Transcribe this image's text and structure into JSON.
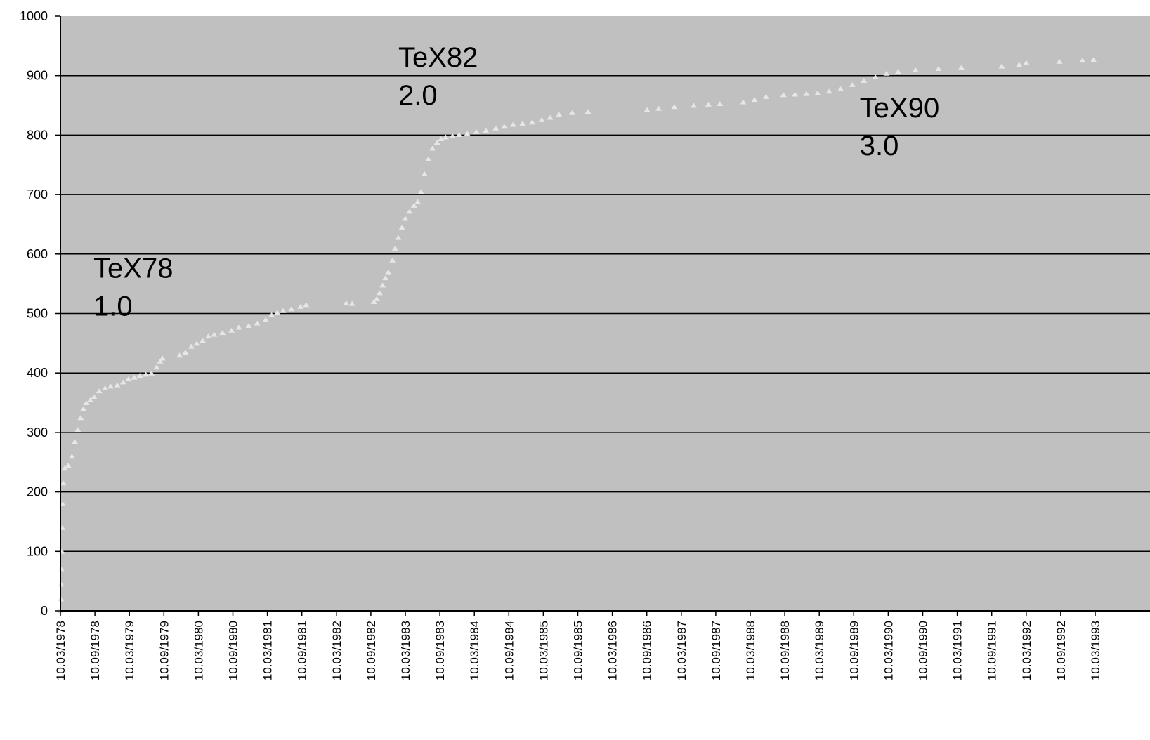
{
  "chart_data": {
    "type": "scatter",
    "title": "",
    "xlabel": "",
    "ylabel": "",
    "x_axis": {
      "type": "date",
      "range": [
        "1978-03-10",
        "1993-03-10"
      ],
      "tick_labels": [
        "10.03/1978",
        "10.09/1978",
        "10.03/1979",
        "10.09/1979",
        "10.03/1980",
        "10.09/1980",
        "10.03/1981",
        "10.09/1981",
        "10.03/1982",
        "10.09/1982",
        "10.03/1983",
        "10.09/1983",
        "10.03/1984",
        "10.09/1984",
        "10.03/1985",
        "10.09/1985",
        "10.03/1986",
        "10.09/1986",
        "10.03/1987",
        "10.09/1987",
        "10.03/1988",
        "10.09/1988",
        "10.03/1989",
        "10.09/1989",
        "10.03/1990",
        "10.09/1990",
        "10.03/1991",
        "10.09/1991",
        "10.03/1992",
        "10.09/1992",
        "10.03/1993"
      ]
    },
    "y_axis": {
      "range": [
        0,
        1000
      ],
      "tick_labels": [
        "0",
        "100",
        "200",
        "300",
        "400",
        "500",
        "600",
        "700",
        "800",
        "900",
        "1000"
      ]
    },
    "grid": "horizontal",
    "background_color": "#c0c0c0",
    "point_color": "#e6e6e6",
    "annotations": [
      {
        "line1": "TeX78",
        "line2": "1.0",
        "x": "1978-09-01",
        "y": 560
      },
      {
        "line1": "TeX82",
        "line2": "2.0",
        "x": "1983-02-01",
        "y": 915
      },
      {
        "line1": "TeX90",
        "line2": "3.0",
        "x": "1989-10-10",
        "y": 830
      }
    ],
    "series": [
      {
        "points": [
          [
            "1978-03-10",
            0
          ],
          [
            "1978-03-12",
            20
          ],
          [
            "1978-03-14",
            45
          ],
          [
            "1978-03-16",
            70
          ],
          [
            "1978-03-18",
            100
          ],
          [
            "1978-03-20",
            140
          ],
          [
            "1978-03-22",
            180
          ],
          [
            "1978-03-25",
            215
          ],
          [
            "1978-04-01",
            240
          ],
          [
            "1978-04-20",
            245
          ],
          [
            "1978-05-10",
            260
          ],
          [
            "1978-05-25",
            285
          ],
          [
            "1978-06-10",
            305
          ],
          [
            "1978-06-25",
            325
          ],
          [
            "1978-07-10",
            340
          ],
          [
            "1978-07-25",
            350
          ],
          [
            "1978-08-15",
            355
          ],
          [
            "1978-09-05",
            360
          ],
          [
            "1978-10-01",
            370
          ],
          [
            "1978-11-01",
            375
          ],
          [
            "1978-12-01",
            378
          ],
          [
            "1979-01-05",
            380
          ],
          [
            "1979-02-05",
            385
          ],
          [
            "1979-03-05",
            390
          ],
          [
            "1979-04-05",
            393
          ],
          [
            "1979-05-05",
            396
          ],
          [
            "1979-06-05",
            398
          ],
          [
            "1979-07-05",
            400
          ],
          [
            "1979-08-01",
            410
          ],
          [
            "1979-08-20",
            420
          ],
          [
            "1979-09-01",
            425
          ],
          [
            "1979-12-01",
            430
          ],
          [
            "1980-01-01",
            435
          ],
          [
            "1980-02-01",
            445
          ],
          [
            "1980-03-01",
            450
          ],
          [
            "1980-04-01",
            455
          ],
          [
            "1980-05-01",
            462
          ],
          [
            "1980-06-01",
            465
          ],
          [
            "1980-07-15",
            468
          ],
          [
            "1980-09-01",
            472
          ],
          [
            "1980-10-10",
            477
          ],
          [
            "1980-12-01",
            480
          ],
          [
            "1981-01-15",
            484
          ],
          [
            "1981-03-01",
            490
          ],
          [
            "1981-04-01",
            498
          ],
          [
            "1981-05-01",
            502
          ],
          [
            "1981-06-01",
            505
          ],
          [
            "1981-07-15",
            508
          ],
          [
            "1981-09-01",
            512
          ],
          [
            "1981-10-01",
            515
          ],
          [
            "1982-05-01",
            518
          ],
          [
            "1982-06-01",
            517
          ],
          [
            "1982-09-25",
            520
          ],
          [
            "1982-10-10",
            525
          ],
          [
            "1982-10-25",
            535
          ],
          [
            "1982-11-10",
            548
          ],
          [
            "1982-11-25",
            560
          ],
          [
            "1982-12-10",
            570
          ],
          [
            "1983-01-01",
            590
          ],
          [
            "1983-01-15",
            610
          ],
          [
            "1983-02-01",
            628
          ],
          [
            "1983-02-20",
            645
          ],
          [
            "1983-03-10",
            660
          ],
          [
            "1983-04-01",
            672
          ],
          [
            "1983-04-25",
            682
          ],
          [
            "1983-05-15",
            688
          ],
          [
            "1983-06-01",
            705
          ],
          [
            "1983-06-20",
            735
          ],
          [
            "1983-07-10",
            760
          ],
          [
            "1983-08-01",
            778
          ],
          [
            "1983-08-25",
            788
          ],
          [
            "1983-09-15",
            794
          ],
          [
            "1983-10-10",
            797
          ],
          [
            "1983-11-15",
            799
          ],
          [
            "1983-12-20",
            801
          ],
          [
            "1984-02-01",
            803
          ],
          [
            "1984-03-20",
            806
          ],
          [
            "1984-05-10",
            808
          ],
          [
            "1984-07-01",
            812
          ],
          [
            "1984-08-15",
            815
          ],
          [
            "1984-10-01",
            818
          ],
          [
            "1984-11-20",
            820
          ],
          [
            "1985-01-10",
            822
          ],
          [
            "1985-03-01",
            826
          ],
          [
            "1985-04-15",
            830
          ],
          [
            "1985-06-01",
            835
          ],
          [
            "1985-08-10",
            838
          ],
          [
            "1985-11-01",
            840
          ],
          [
            "1986-09-10",
            843
          ],
          [
            "1986-11-10",
            845
          ],
          [
            "1987-02-01",
            848
          ],
          [
            "1987-05-15",
            850
          ],
          [
            "1987-08-01",
            852
          ],
          [
            "1987-10-01",
            853
          ],
          [
            "1988-02-01",
            856
          ],
          [
            "1988-04-01",
            860
          ],
          [
            "1988-06-01",
            865
          ],
          [
            "1988-09-01",
            868
          ],
          [
            "1988-11-01",
            869
          ],
          [
            "1989-01-01",
            870
          ],
          [
            "1989-03-01",
            871
          ],
          [
            "1989-05-01",
            874
          ],
          [
            "1989-07-01",
            878
          ],
          [
            "1989-09-01",
            885
          ],
          [
            "1989-11-01",
            892
          ],
          [
            "1990-01-01",
            898
          ],
          [
            "1990-03-01",
            904
          ],
          [
            "1990-05-01",
            907
          ],
          [
            "1990-08-01",
            910
          ],
          [
            "1990-12-01",
            912
          ],
          [
            "1991-04-01",
            914
          ],
          [
            "1991-11-01",
            916
          ],
          [
            "1992-02-01",
            919
          ],
          [
            "1992-03-10",
            922
          ],
          [
            "1992-09-01",
            924
          ],
          [
            "1993-01-01",
            926
          ],
          [
            "1993-03-01",
            927
          ]
        ]
      }
    ]
  }
}
